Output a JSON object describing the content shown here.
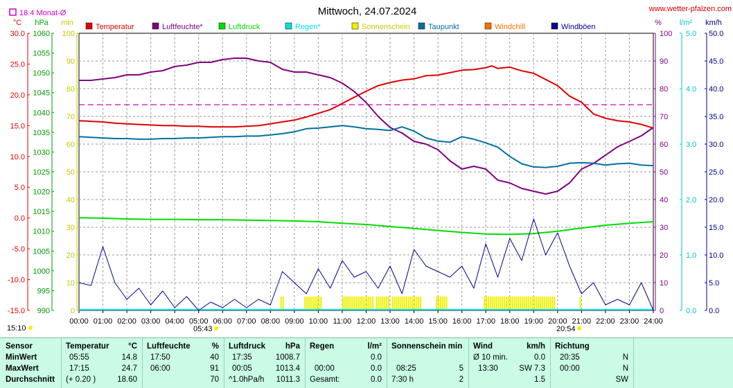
{
  "header": {
    "title": "Mittwoch, 24.07.2024",
    "site": "www.wetter-pfalzen.com",
    "monthly_avg_label": "18.4 Monat-Ø",
    "left_units": [
      "°C",
      "hPa",
      "min"
    ],
    "right_units": [
      "%",
      "l/m²",
      "km/h"
    ]
  },
  "legend": [
    {
      "name": "Temperatur",
      "color": "#e00000"
    },
    {
      "name": "Luftfeuchte*",
      "color": "#800080"
    },
    {
      "name": "Luftdruck",
      "color": "#00dd00"
    },
    {
      "name": "Regen*",
      "color": "#00e0e0"
    },
    {
      "name": "Sonnenschein",
      "color": "#f0f000"
    },
    {
      "name": "Taupunkt",
      "color": "#0070a0"
    },
    {
      "name": "Windchill",
      "color": "#ff7000"
    },
    {
      "name": "Windböen",
      "color": "#000090"
    }
  ],
  "sun": {
    "sunrise": "05:43",
    "sunset": "20:54",
    "left_time": "15:10"
  },
  "colors": {
    "temp": "#e00000",
    "humidity": "#800080",
    "pressure": "#00dd00",
    "rain": "#00e0e0",
    "sun": "#f0f000",
    "dew": "#0070a0",
    "gust": "#000090",
    "avg": "#cc00cc"
  },
  "chart_data": {
    "type": "line",
    "title": "Mittwoch, 24.07.2024",
    "x_ticks": [
      "00:00",
      "01:00",
      "02:00",
      "03:00",
      "04:00",
      "05:00",
      "06:00",
      "07:00",
      "08:00",
      "09:00",
      "10:00",
      "11:00",
      "12:00",
      "13:00",
      "14:00",
      "15:00",
      "16:00",
      "17:00",
      "18:00",
      "19:00",
      "20:00",
      "21:00",
      "22:00",
      "23:00",
      "24:00"
    ],
    "axes": {
      "temp_C": {
        "ticks": [
          "30.0",
          "25.0",
          "20.0",
          "15.0",
          "10.0",
          "5.0",
          "0.0",
          "-5.0",
          "-10.0",
          "-15.0"
        ],
        "range": [
          -15,
          30
        ]
      },
      "pressure_hPa": {
        "ticks": [
          "1060",
          "1055",
          "1050",
          "1045",
          "1040",
          "1035",
          "1030",
          "1025",
          "1020",
          "1015",
          "1010",
          "1005",
          "1000",
          "995",
          "990"
        ],
        "range": [
          990,
          1060
        ]
      },
      "sun_min": {
        "ticks": [
          "100",
          "90",
          "80",
          "70",
          "60",
          "50",
          "40",
          "30",
          "20",
          "10",
          "0"
        ],
        "range": [
          0,
          100
        ]
      },
      "humidity_pct": {
        "ticks": [
          "100",
          "90",
          "80",
          "70",
          "60",
          "50",
          "40",
          "30",
          "20",
          "10",
          "0"
        ],
        "range": [
          0,
          100
        ]
      },
      "rain_lm2": {
        "ticks": [
          "5.0",
          "4.0",
          "3.0",
          "2.0",
          "1.0",
          "0.0"
        ],
        "range": [
          0,
          5
        ]
      },
      "wind_kmh": {
        "ticks": [
          "50.0",
          "45.0",
          "40.0",
          "35.0",
          "30.0",
          "25.0",
          "20.0",
          "15.0",
          "10.0",
          "5.0",
          "0.0"
        ],
        "range": [
          0,
          50
        ]
      }
    },
    "monthly_avg_temp": 18.4,
    "series": [
      {
        "name": "Temperatur",
        "axis": "temp_C",
        "x": [
          0,
          0.5,
          1,
          1.5,
          2,
          2.5,
          3,
          3.5,
          4,
          4.5,
          5,
          5.5,
          5.92,
          6.5,
          7,
          7.5,
          8,
          8.5,
          9,
          9.5,
          10,
          10.5,
          11,
          11.5,
          12,
          12.5,
          13,
          13.5,
          14,
          14.5,
          15,
          15.5,
          16,
          16.5,
          17,
          17.25,
          17.5,
          18,
          18.5,
          19,
          19.5,
          20,
          20.5,
          21,
          21.5,
          22,
          22.5,
          23,
          23.5,
          24
        ],
        "y": [
          15.8,
          15.7,
          15.6,
          15.4,
          15.3,
          15.2,
          15.1,
          15.0,
          15.0,
          14.9,
          14.9,
          14.8,
          14.8,
          14.8,
          14.9,
          15.0,
          15.3,
          15.6,
          15.9,
          16.4,
          17.0,
          17.6,
          18.6,
          19.6,
          20.6,
          21.5,
          22.0,
          22.4,
          22.6,
          23.1,
          23.2,
          23.6,
          24.0,
          24.1,
          24.4,
          24.7,
          24.3,
          24.5,
          23.9,
          23.5,
          22.5,
          21.5,
          19.8,
          18.8,
          16.9,
          16.2,
          15.8,
          15.6,
          15.2,
          14.6
        ]
      },
      {
        "name": "Luftfeuchte*",
        "axis": "humidity_pct",
        "x": [
          0,
          0.5,
          1,
          1.5,
          2,
          2.5,
          3,
          3.5,
          4,
          4.5,
          5,
          5.5,
          6,
          6.5,
          7,
          7.5,
          8,
          8.5,
          9,
          9.5,
          10,
          10.5,
          11,
          11.5,
          12,
          12.5,
          13,
          13.5,
          14,
          14.5,
          15,
          15.5,
          16,
          16.5,
          17,
          17.5,
          18,
          18.5,
          19,
          19.5,
          20,
          20.5,
          21,
          21.5,
          22,
          22.5,
          23,
          23.5,
          24
        ],
        "y": [
          83,
          83,
          83.5,
          84,
          85,
          85,
          86,
          86.5,
          88,
          88.5,
          89.5,
          89.5,
          90.5,
          91,
          91,
          90,
          89.5,
          87,
          86,
          86,
          85,
          84,
          82,
          79,
          75,
          70,
          66,
          64,
          61,
          60,
          58,
          54,
          51,
          52,
          51,
          47,
          46,
          44,
          43,
          42,
          43,
          46,
          51,
          53,
          56,
          59,
          61,
          63,
          66
        ]
      },
      {
        "name": "Luftdruck",
        "axis": "pressure_hPa",
        "x": [
          0,
          1,
          2,
          3,
          4,
          5,
          6,
          7,
          8,
          9,
          10,
          11,
          12,
          13,
          14,
          15,
          16,
          17,
          18,
          19,
          20,
          21,
          22,
          23,
          24
        ],
        "y": [
          1013.4,
          1013.3,
          1013.1,
          1013.0,
          1013.0,
          1012.9,
          1012.9,
          1012.8,
          1012.7,
          1012.6,
          1012.4,
          1012.0,
          1011.7,
          1011.2,
          1010.7,
          1010.2,
          1009.7,
          1009.3,
          1009.2,
          1009.4,
          1010.0,
          1010.8,
          1011.5,
          1012.0,
          1012.4
        ]
      },
      {
        "name": "Taupunkt",
        "axis": "temp_C",
        "x": [
          0,
          0.5,
          1,
          1.5,
          2,
          2.5,
          3,
          3.5,
          4,
          4.5,
          5,
          5.5,
          6,
          6.5,
          7,
          7.5,
          8,
          8.5,
          9,
          9.5,
          10,
          10.5,
          11,
          11.5,
          12,
          12.5,
          13,
          13.5,
          14,
          14.5,
          15,
          15.5,
          16,
          16.5,
          17,
          17.5,
          18,
          18.5,
          19,
          19.5,
          20,
          20.5,
          21,
          21.5,
          22,
          22.5,
          23,
          23.5,
          24
        ],
        "y": [
          13.2,
          13.1,
          13.0,
          12.9,
          12.9,
          12.8,
          12.8,
          12.9,
          12.9,
          13.0,
          13.0,
          13.1,
          13.2,
          13.2,
          13.3,
          13.3,
          13.5,
          13.7,
          14.0,
          14.5,
          14.6,
          14.8,
          15.0,
          14.8,
          14.5,
          14.4,
          14.2,
          14.8,
          14.1,
          13.0,
          12.5,
          12.3,
          13.2,
          12.8,
          12.2,
          11.5,
          10.0,
          8.8,
          8.3,
          8.2,
          8.4,
          8.9,
          9.0,
          8.9,
          8.6,
          8.8,
          8.9,
          8.6,
          8.5
        ]
      },
      {
        "name": "Windböen",
        "axis": "wind_kmh",
        "x": [
          0,
          0.5,
          1,
          1.5,
          2,
          2.5,
          3,
          3.5,
          4,
          4.5,
          5,
          5.5,
          6,
          6.5,
          7,
          7.5,
          8,
          8.5,
          9,
          9.5,
          10,
          10.5,
          11,
          11.5,
          12,
          12.5,
          13,
          13.5,
          14,
          14.5,
          15,
          15.5,
          16,
          16.5,
          17,
          17.5,
          18,
          18.5,
          19,
          19.5,
          20,
          20.5,
          21,
          21.5,
          22,
          22.5,
          23,
          23.5,
          24
        ],
        "y": [
          5,
          4.5,
          11.5,
          5,
          2,
          4,
          1,
          3.5,
          0.5,
          2.5,
          0,
          1.5,
          0.5,
          2,
          0.5,
          2,
          1,
          7,
          5,
          3,
          7.5,
          4,
          9,
          6,
          7,
          4,
          8,
          3,
          11,
          8,
          7,
          6,
          8,
          4,
          12,
          6,
          13,
          9,
          16.5,
          10,
          14,
          8,
          3,
          5,
          1,
          2,
          1,
          5,
          0
        ]
      }
    ],
    "sunshine_intervals": [
      [
        "08:25",
        "08:35"
      ],
      [
        "09:25",
        "10:10"
      ],
      [
        "11:00",
        "12:20"
      ],
      [
        "12:25",
        "13:00"
      ],
      [
        "13:05",
        "14:20"
      ],
      [
        "14:55",
        "15:25"
      ],
      [
        "16:55",
        "19:50"
      ],
      [
        "20:55",
        "21:00"
      ]
    ],
    "rain_total": 0.0
  },
  "stats": {
    "labels": {
      "sensor": "Sensor",
      "min": "MinWert",
      "max": "MaxWert",
      "avg": "Durchschnitt"
    },
    "temp": {
      "title": "Temperatur",
      "unit": "°C",
      "min_time": "05:55",
      "min_val": "14.8",
      "max_time": "17:15",
      "max_val": "24.7",
      "avg_note": "(+ 0.20 )",
      "avg_val": "18.60"
    },
    "humidity": {
      "title": "Luftfeuchte",
      "unit": "%",
      "min_time": "17:50",
      "min_val": "40",
      "max_time": "06:00",
      "max_val": "91",
      "avg_val": "70"
    },
    "pressure": {
      "title": "Luftdruck",
      "unit": "hPa",
      "min_time": "17:35",
      "min_val": "1008.7",
      "max_time": "00:05",
      "max_val": "1013.4",
      "avg_note": "^1.0hPa/h",
      "avg_val": "1011.3"
    },
    "rain": {
      "title": "Regen",
      "unit": "l/m²",
      "min_val": "0.0",
      "max_time": "00:00",
      "max_val": "0.0",
      "avg_note": "Gesamt:",
      "avg_val": "0.0"
    },
    "sun": {
      "title": "Sonnenschein min",
      "max_time": "08:25",
      "max_val": "5",
      "avg_note": "7:30 h",
      "avg_val": "2"
    },
    "wind": {
      "title": "Wind",
      "unit": "km/h",
      "min_note": "Ø 10 min.",
      "min_val": "0.0",
      "max_time": "13:30",
      "max_val": "SW 7.3",
      "avg_val": "1.5"
    },
    "dir": {
      "title": "Richtung",
      "min_time": "20:35",
      "min_val": "N",
      "max_time": "00:00",
      "max_val": "N",
      "avg_val": "SW"
    }
  }
}
